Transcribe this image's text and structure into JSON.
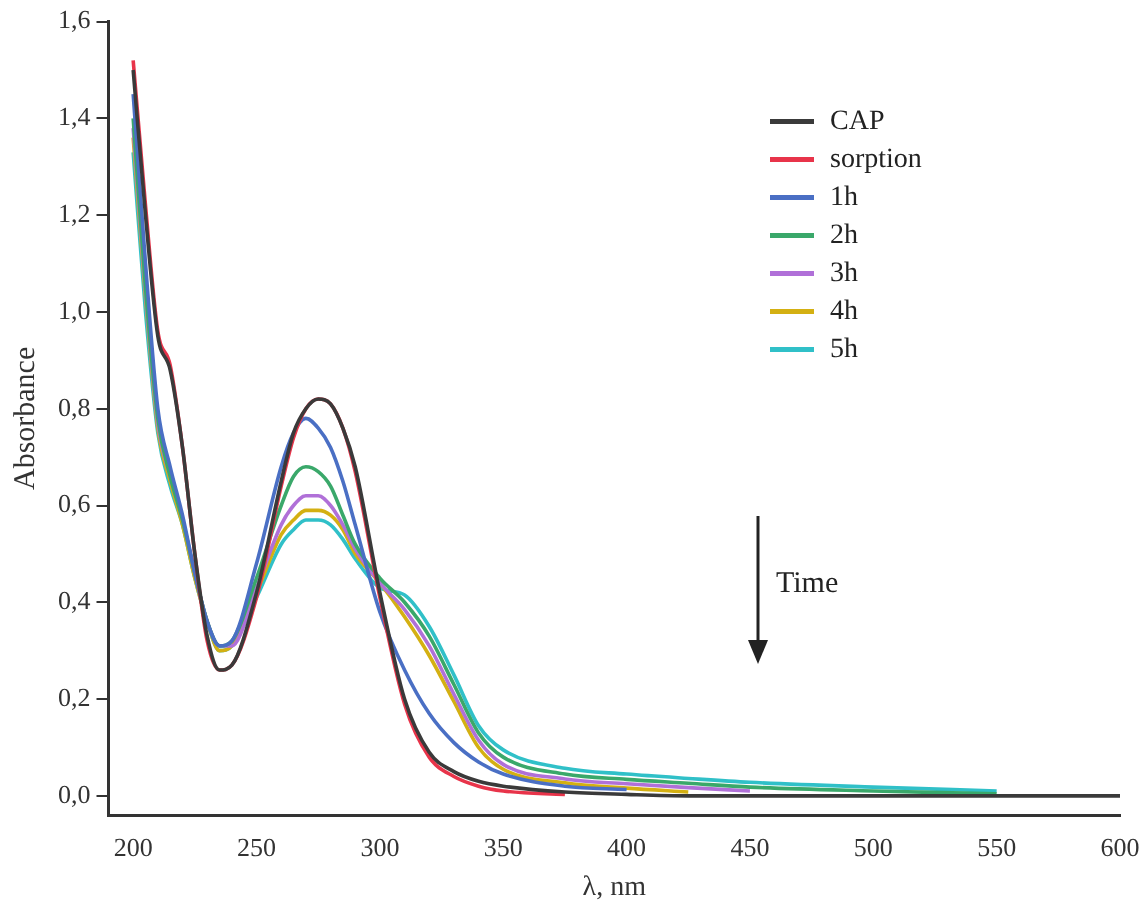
{
  "chart_data": {
    "type": "line",
    "xlabel": "λ, nm",
    "ylabel": "Absorbance",
    "marker": "none",
    "grid": false,
    "legend": "top right",
    "xlim": [
      190,
      600
    ],
    "xticks": [
      200,
      250,
      300,
      350,
      400,
      450,
      500,
      550,
      600
    ],
    "ylim": [
      -0.04,
      1.6
    ],
    "yticks": [
      {
        "value": 0,
        "label": "0,0"
      },
      {
        "value": 0.2,
        "label": "0,2"
      },
      {
        "value": 0.4,
        "label": "0,4"
      },
      {
        "value": 0.6,
        "label": "0,6"
      },
      {
        "value": 0.8,
        "label": "0,8"
      },
      {
        "value": 1.0,
        "label": "1,0"
      },
      {
        "value": 1.2,
        "label": "1,2"
      },
      {
        "value": 1.4,
        "label": "1,4"
      },
      {
        "value": 1.6,
        "label": "1,6"
      }
    ],
    "x": [
      200,
      205,
      210,
      215,
      220,
      225,
      230,
      235,
      240,
      250,
      260,
      265,
      270,
      275,
      280,
      285,
      290,
      300,
      310,
      320,
      330,
      340,
      350,
      375,
      400,
      425,
      450,
      500,
      550,
      600
    ],
    "annotations": [
      "Time"
    ],
    "series": [
      {
        "name": "CAP",
        "color": "#3a3a3a",
        "values": [
          1.5,
          1.2,
          0.95,
          0.88,
          0.72,
          0.5,
          0.33,
          0.26,
          0.27,
          0.42,
          0.65,
          0.75,
          0.8,
          0.82,
          0.81,
          0.76,
          0.68,
          0.42,
          0.2,
          0.09,
          0.05,
          0.03,
          0.02,
          0.008,
          0.003,
          0,
          0,
          0,
          0,
          0
        ]
      },
      {
        "name": "sorption",
        "color": "#e8344a",
        "values": [
          1.52,
          1.22,
          0.96,
          0.89,
          0.72,
          0.5,
          0.32,
          0.26,
          0.27,
          0.41,
          0.64,
          0.74,
          0.8,
          0.82,
          0.81,
          0.76,
          0.67,
          0.41,
          0.19,
          0.08,
          0.04,
          0.02,
          0.01,
          0.003,
          null,
          null,
          null,
          null,
          null,
          null
        ]
      },
      {
        "name": "1h",
        "color": "#4a6fc4",
        "values": [
          1.45,
          1.1,
          0.8,
          0.68,
          0.58,
          0.46,
          0.36,
          0.31,
          0.32,
          0.48,
          0.68,
          0.75,
          0.78,
          0.76,
          0.72,
          0.65,
          0.56,
          0.38,
          0.26,
          0.17,
          0.11,
          0.07,
          0.045,
          0.02,
          0.013,
          null,
          null,
          null,
          null,
          null
        ]
      },
      {
        "name": "2h",
        "color": "#3aa86a",
        "values": [
          1.4,
          1.05,
          0.78,
          0.66,
          0.57,
          0.46,
          0.36,
          0.31,
          0.32,
          0.45,
          0.6,
          0.66,
          0.68,
          0.67,
          0.64,
          0.58,
          0.52,
          0.45,
          0.4,
          0.33,
          0.23,
          0.13,
          0.08,
          0.045,
          0.034,
          0.026,
          0.018,
          0.01,
          0.004,
          null
        ]
      },
      {
        "name": "3h",
        "color": "#b070d8",
        "values": [
          1.38,
          1.04,
          0.77,
          0.66,
          0.57,
          0.46,
          0.36,
          0.31,
          0.31,
          0.43,
          0.56,
          0.6,
          0.62,
          0.62,
          0.6,
          0.56,
          0.51,
          0.44,
          0.385,
          0.31,
          0.21,
          0.115,
          0.065,
          0.035,
          0.025,
          0.017,
          0.01,
          null,
          null,
          null
        ]
      },
      {
        "name": "4h",
        "color": "#d4b012",
        "values": [
          1.36,
          1.03,
          0.76,
          0.65,
          0.56,
          0.45,
          0.36,
          0.3,
          0.31,
          0.42,
          0.54,
          0.57,
          0.59,
          0.59,
          0.58,
          0.55,
          0.5,
          0.44,
          0.37,
          0.29,
          0.195,
          0.1,
          0.055,
          0.027,
          0.016,
          0.008,
          null,
          null,
          null,
          null
        ]
      },
      {
        "name": "5h",
        "color": "#30c0c8",
        "values": [
          1.33,
          1.0,
          0.75,
          0.64,
          0.56,
          0.45,
          0.36,
          0.3,
          0.31,
          0.41,
          0.52,
          0.55,
          0.57,
          0.57,
          0.56,
          0.53,
          0.49,
          0.43,
          0.415,
          0.35,
          0.25,
          0.145,
          0.095,
          0.057,
          0.045,
          0.036,
          0.028,
          0.018,
          0.01,
          null
        ]
      }
    ]
  }
}
